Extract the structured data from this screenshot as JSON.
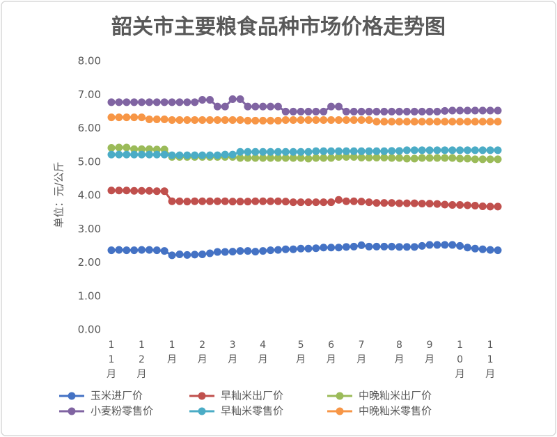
{
  "chart_data": {
    "type": "line",
    "title": "韶关市主要粮食品种市场价格走势图",
    "y_label": "单位：元/公斤",
    "categories": [
      "11月",
      null,
      null,
      null,
      "12月",
      null,
      null,
      null,
      "1月",
      null,
      null,
      null,
      "2月",
      null,
      null,
      null,
      "3月",
      null,
      null,
      null,
      "4月",
      null,
      null,
      null,
      null,
      "5月",
      null,
      null,
      null,
      "6月",
      null,
      null,
      null,
      "7月",
      null,
      null,
      null,
      null,
      "8月",
      null,
      null,
      null,
      "9月",
      null,
      null,
      null,
      "10月",
      null,
      null,
      null,
      "11月",
      null
    ],
    "ylim": [
      0,
      8
    ],
    "yticks": [
      {
        "value": 0,
        "label": "0.00"
      },
      {
        "value": 1,
        "label": "1.00"
      },
      {
        "value": 2,
        "label": "2.00"
      },
      {
        "value": 3,
        "label": "3.00"
      },
      {
        "value": 4,
        "label": "4.00"
      },
      {
        "value": 5,
        "label": "5.00"
      },
      {
        "value": 6,
        "label": "6.00"
      },
      {
        "value": 7,
        "label": "7.00"
      },
      {
        "value": 8,
        "label": "8.00"
      }
    ],
    "grid": false,
    "legend": "bottom",
    "series": [
      {
        "name": "玉米进厂价",
        "color": "#4472c4",
        "values": [
          2.37,
          2.38,
          2.37,
          2.37,
          2.38,
          2.38,
          2.37,
          2.35,
          2.22,
          2.25,
          2.23,
          2.24,
          2.25,
          2.28,
          2.32,
          2.32,
          2.33,
          2.35,
          2.35,
          2.33,
          2.35,
          2.37,
          2.38,
          2.4,
          2.4,
          2.42,
          2.42,
          2.43,
          2.45,
          2.45,
          2.45,
          2.47,
          2.48,
          2.52,
          2.48,
          2.48,
          2.48,
          2.48,
          2.47,
          2.47,
          2.47,
          2.5,
          2.53,
          2.53,
          2.53,
          2.53,
          2.5,
          2.45,
          2.42,
          2.4,
          2.38,
          2.37
        ]
      },
      {
        "name": "早籼米出厂价",
        "color": "#c0504d",
        "values": [
          4.15,
          4.15,
          4.15,
          4.14,
          4.14,
          4.14,
          4.13,
          4.13,
          3.83,
          3.83,
          3.82,
          3.83,
          3.83,
          3.83,
          3.83,
          3.83,
          3.82,
          3.82,
          3.82,
          3.83,
          3.83,
          3.83,
          3.83,
          3.82,
          3.8,
          3.8,
          3.8,
          3.8,
          3.8,
          3.8,
          3.87,
          3.83,
          3.83,
          3.82,
          3.8,
          3.78,
          3.78,
          3.78,
          3.77,
          3.77,
          3.77,
          3.76,
          3.76,
          3.75,
          3.73,
          3.72,
          3.72,
          3.71,
          3.7,
          3.68,
          3.67,
          3.67
        ]
      },
      {
        "name": "中晚籼米出厂价",
        "color": "#9bbb59",
        "values": [
          5.42,
          5.43,
          5.43,
          5.38,
          5.38,
          5.38,
          5.37,
          5.37,
          5.15,
          5.15,
          5.15,
          5.15,
          5.15,
          5.15,
          5.15,
          5.15,
          5.15,
          5.12,
          5.12,
          5.12,
          5.12,
          5.12,
          5.12,
          5.12,
          5.12,
          5.12,
          5.1,
          5.12,
          5.12,
          5.12,
          5.15,
          5.15,
          5.15,
          5.13,
          5.13,
          5.13,
          5.13,
          5.12,
          5.12,
          5.1,
          5.1,
          5.12,
          5.12,
          5.12,
          5.12,
          5.12,
          5.1,
          5.1,
          5.08,
          5.08,
          5.08,
          5.08
        ]
      },
      {
        "name": "小麦粉零售价",
        "color": "#8064a2",
        "values": [
          6.78,
          6.78,
          6.78,
          6.78,
          6.78,
          6.78,
          6.78,
          6.78,
          6.78,
          6.78,
          6.78,
          6.78,
          6.85,
          6.85,
          6.65,
          6.65,
          6.87,
          6.87,
          6.65,
          6.65,
          6.65,
          6.65,
          6.65,
          6.5,
          6.5,
          6.5,
          6.5,
          6.5,
          6.5,
          6.65,
          6.65,
          6.5,
          6.5,
          6.5,
          6.5,
          6.5,
          6.5,
          6.5,
          6.5,
          6.5,
          6.5,
          6.5,
          6.5,
          6.5,
          6.52,
          6.53,
          6.53,
          6.53,
          6.53,
          6.53,
          6.53,
          6.53
        ]
      },
      {
        "name": "早籼米零售价",
        "color": "#4bacc6",
        "values": [
          5.22,
          5.22,
          5.22,
          5.22,
          5.22,
          5.22,
          5.22,
          5.22,
          5.2,
          5.2,
          5.2,
          5.2,
          5.2,
          5.2,
          5.2,
          5.22,
          5.22,
          5.3,
          5.3,
          5.3,
          5.3,
          5.3,
          5.3,
          5.3,
          5.3,
          5.3,
          5.3,
          5.32,
          5.32,
          5.32,
          5.32,
          5.32,
          5.32,
          5.32,
          5.32,
          5.32,
          5.32,
          5.33,
          5.33,
          5.35,
          5.35,
          5.35,
          5.35,
          5.35,
          5.35,
          5.35,
          5.35,
          5.35,
          5.35,
          5.35,
          5.35,
          5.35
        ]
      },
      {
        "name": "中晚籼米零售价",
        "color": "#f79646",
        "values": [
          6.33,
          6.33,
          6.33,
          6.33,
          6.33,
          6.27,
          6.27,
          6.27,
          6.25,
          6.25,
          6.25,
          6.25,
          6.25,
          6.25,
          6.25,
          6.25,
          6.25,
          6.25,
          6.23,
          6.23,
          6.23,
          6.23,
          6.23,
          6.25,
          6.25,
          6.25,
          6.25,
          6.25,
          6.25,
          6.25,
          6.25,
          6.25,
          6.25,
          6.25,
          6.25,
          6.2,
          6.2,
          6.2,
          6.2,
          6.2,
          6.2,
          6.2,
          6.2,
          6.2,
          6.2,
          6.2,
          6.2,
          6.2,
          6.2,
          6.2,
          6.2,
          6.2
        ]
      }
    ]
  }
}
